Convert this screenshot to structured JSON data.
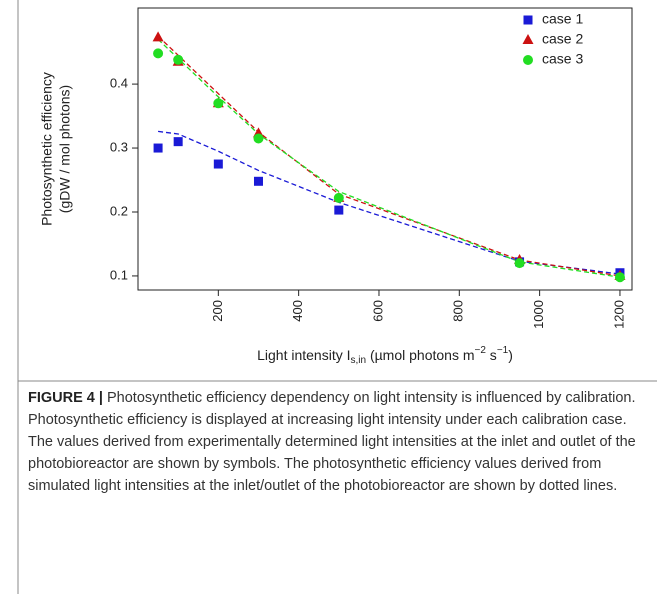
{
  "chart_data": {
    "type": "scatter",
    "y_label": [
      "Photosynthetic efficiency",
      "(gDW / mol photons)"
    ],
    "x_label": [
      "Light intensity I",
      "s,in",
      " (µmol photons m",
      "−2",
      " s",
      "−1",
      ")"
    ],
    "x": [
      50,
      100,
      200,
      300,
      500,
      950,
      1200
    ],
    "series": [
      {
        "name": "case 1",
        "color": "#1a1ad6",
        "marker": "square",
        "values": [
          0.3,
          0.31,
          0.275,
          0.248,
          0.203,
          0.122,
          0.105
        ],
        "simulated_values": [
          0.326,
          0.322,
          0.295,
          0.265,
          0.215,
          0.123,
          0.103
        ]
      },
      {
        "name": "case 2",
        "color": "#cc1111",
        "marker": "triangle",
        "values": [
          0.473,
          0.435,
          0.37,
          0.323,
          0.222,
          0.125,
          0.1
        ],
        "simulated_values": [
          0.475,
          0.445,
          0.385,
          0.325,
          0.228,
          0.125,
          0.1
        ]
      },
      {
        "name": "case 3",
        "color": "#22dd22",
        "marker": "circle",
        "values": [
          0.448,
          0.438,
          0.37,
          0.315,
          0.222,
          0.12,
          0.098
        ],
        "simulated_values": [
          0.47,
          0.44,
          0.38,
          0.322,
          0.232,
          0.122,
          0.098
        ]
      }
    ],
    "xlim": [
      0,
      1230
    ],
    "ylim": [
      0.078,
      0.519
    ],
    "xticks": [
      200,
      400,
      600,
      800,
      1000,
      1200
    ],
    "yticks": [
      0.1,
      0.2,
      0.3,
      0.4
    ],
    "legend": "top-right"
  },
  "caption": {
    "label": "FIGURE 4 |",
    "text": "Photosynthetic efficiency dependency on light intensity is influenced by calibration. Photosynthetic efficiency is displayed at increasing light intensity under each calibration case. The values derived from experimentally determined light intensities at the inlet and outlet of the photobioreactor are shown by symbols. The photosynthetic efficiency values derived from simulated light intensities at the inlet/outlet of the photobioreactor are shown by dotted lines."
  }
}
